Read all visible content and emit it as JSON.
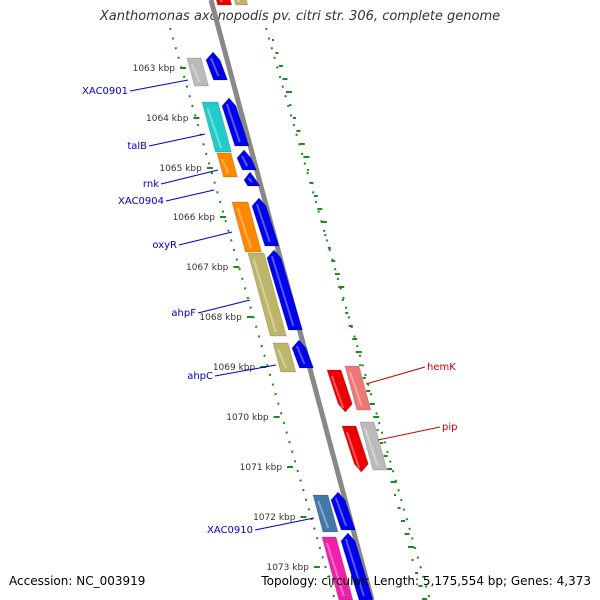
{
  "title": "Xanthomonas axonopodis pv. citri str. 306, complete genome",
  "footer": {
    "accession": "Accession: NC_003919",
    "summary": "Topology: circular; Length: 5,175,554 bp; Genes: 4,373"
  },
  "kbp_labels": [
    "1063 kbp",
    "1064 kbp",
    "1065 kbp",
    "1066 kbp",
    "1067 kbp",
    "1068 kbp",
    "1069 kbp",
    "1070 kbp",
    "1071 kbp",
    "1072 kbp",
    "1073 kbp"
  ],
  "gene_labels": [
    {
      "name": "XAC0901",
      "color": "#0000cc"
    },
    {
      "name": "talB",
      "color": "#0000cc"
    },
    {
      "name": "rnk",
      "color": "#0000cc"
    },
    {
      "name": "XAC0904",
      "color": "#0000cc"
    },
    {
      "name": "oxyR",
      "color": "#0000cc"
    },
    {
      "name": "ahpF",
      "color": "#0000cc"
    },
    {
      "name": "ahpC",
      "color": "#0000cc"
    },
    {
      "name": "hemK",
      "color": "#cc0000"
    },
    {
      "name": "pip",
      "color": "#cc0000"
    },
    {
      "name": "XAC0910",
      "color": "#0000cc"
    }
  ],
  "colors": {
    "backbone": "#888888",
    "gc_dots": "#1a8a1a",
    "blue_cds": "#0000ee",
    "red_cds": "#ee0000",
    "grey": "#bbbbbb",
    "cyan": "#22cccc",
    "orange": "#ff8800",
    "olive": "#bdb66a",
    "pink_red": "#ee7777",
    "steel": "#4477aa",
    "magenta": "#ee22aa"
  }
}
